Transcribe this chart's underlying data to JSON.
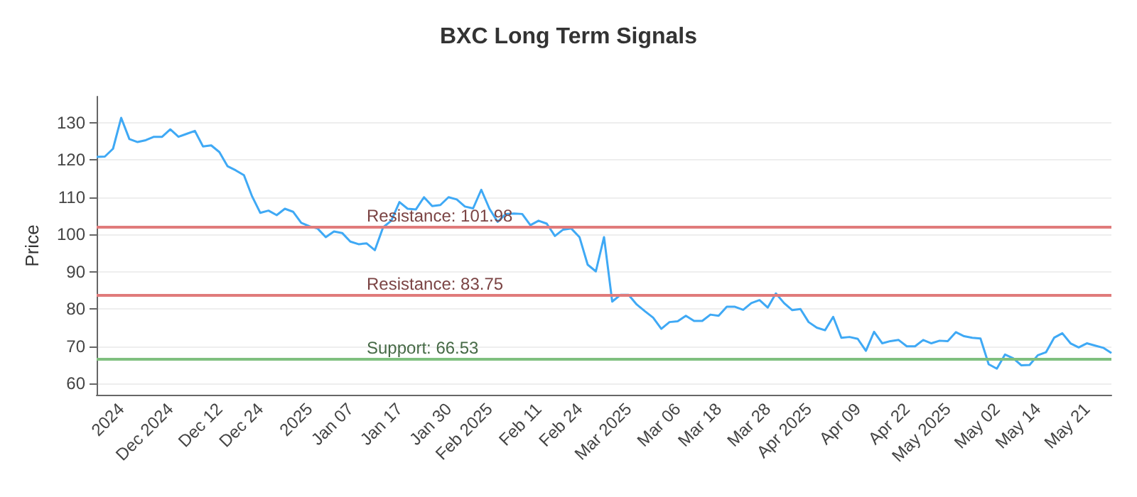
{
  "chart_data": {
    "type": "line",
    "title": "BXC Long Term Signals",
    "ylabel": "Price",
    "categories": [
      null,
      null,
      null,
      "2024",
      null,
      null,
      null,
      null,
      null,
      "Dec 2024",
      null,
      null,
      null,
      null,
      null,
      "Dec 12",
      null,
      null,
      null,
      null,
      "Dec 24",
      null,
      null,
      null,
      null,
      null,
      "2025",
      null,
      null,
      null,
      null,
      "Jan 07",
      null,
      null,
      null,
      null,
      null,
      "Jan 17",
      null,
      null,
      null,
      null,
      null,
      "Jan 30",
      null,
      null,
      null,
      null,
      "Feb 2025",
      null,
      null,
      null,
      null,
      null,
      "Feb 11",
      null,
      null,
      null,
      null,
      "Feb 24",
      null,
      null,
      null,
      null,
      null,
      "Mar 2025",
      null,
      null,
      null,
      null,
      null,
      "Mar 06",
      null,
      null,
      null,
      null,
      "Mar 18",
      null,
      null,
      null,
      null,
      null,
      "Mar 28",
      null,
      null,
      null,
      null,
      "Apr 2025",
      null,
      null,
      null,
      null,
      null,
      "Apr 09",
      null,
      null,
      null,
      null,
      null,
      "Apr 22",
      null,
      null,
      null,
      null,
      "May 2025",
      null,
      null,
      null,
      null,
      null,
      "May 02",
      null,
      null,
      null,
      null,
      "May 14",
      null,
      null,
      null,
      null,
      null,
      "May 21",
      null,
      null,
      null
    ],
    "series": [
      {
        "color": "#3fa9f5",
        "values": [
          120.8,
          120.9,
          123,
          131.3,
          125.6,
          124.8,
          125.3,
          126.2,
          126.2,
          128.2,
          126.2,
          127.0,
          127.8,
          123.6,
          123.9,
          122.1,
          118.3,
          117.2,
          115.9,
          110.2,
          105.8,
          106.4,
          105.2,
          106.9,
          106.1,
          103.1,
          102.2,
          101.6,
          99.3,
          100.8,
          100.4,
          98.1,
          97.4,
          97.6,
          95.8,
          101.9,
          103.7,
          108.7,
          106.9,
          106.7,
          110.0,
          107.6,
          107.9,
          110,
          109.4,
          107.5,
          107.0,
          112,
          106.9,
          103.4,
          105.5,
          105.6,
          105.5,
          102.5,
          103.7,
          102.9,
          99.6,
          101.3,
          101.6,
          99.3,
          91.9,
          90.1,
          99.3,
          82.0,
          83.8,
          83.8,
          81.2,
          79.4,
          77.7,
          74.7,
          76.5,
          76.7,
          78.2,
          76.8,
          76.8,
          78.5,
          78.2,
          80.6,
          80.6,
          79.8,
          81.6,
          82.4,
          80.4,
          84.2,
          81.6,
          79.7,
          80.0,
          76.5,
          75.0,
          74.3,
          77.9,
          72.3,
          72.5,
          72.0,
          68.8,
          73.9,
          70.8,
          71.4,
          71.7,
          70.0,
          70.0,
          71.7,
          70.8,
          71.5,
          71.4,
          73.8,
          72.7,
          72.3,
          72.1,
          65.2,
          64.0,
          67.8,
          66.8,
          64.9,
          65.0,
          67.6,
          68.4,
          72.3,
          73.5,
          70.8,
          69.7,
          70.8,
          70.2,
          69.6,
          68.2
        ]
      }
    ],
    "ylim": [
      57,
      137
    ],
    "yticks": [
      60,
      70,
      80,
      90,
      100,
      110,
      120,
      130
    ],
    "grid": "y",
    "marker": "none",
    "line_style": "solid",
    "ref_lines": [
      {
        "axis": "y",
        "value": 101.98,
        "label": "Resistance: 101.98",
        "color": "#e07b7b"
      },
      {
        "axis": "y",
        "value": 83.75,
        "label": "Resistance: 83.75",
        "color": "#e07b7b"
      },
      {
        "axis": "y",
        "value": 66.53,
        "label": "Support: 66.53",
        "color": "#7fc07f"
      }
    ]
  }
}
